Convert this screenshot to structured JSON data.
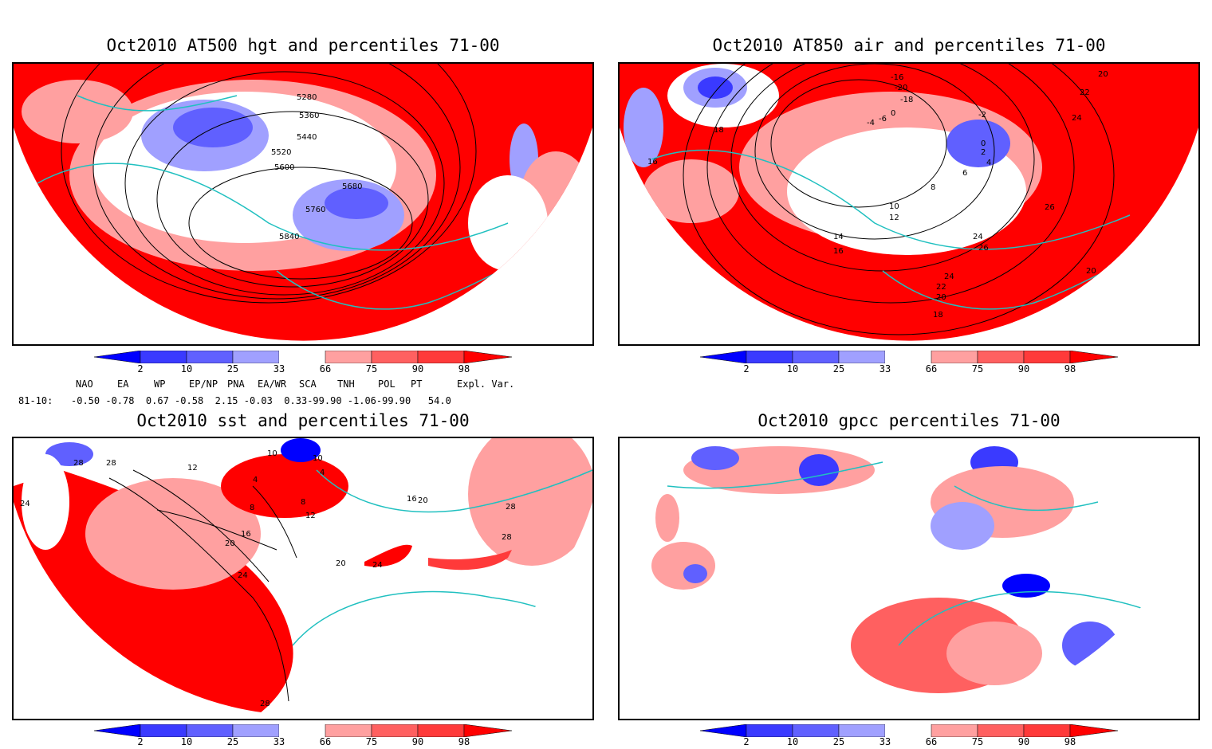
{
  "panels": [
    {
      "title": "Oct2010 AT500 hgt and percentiles 71-00",
      "contour_labels": [
        "5280",
        "5360",
        "5440",
        "5520",
        "5600",
        "5680",
        "5760",
        "5840"
      ]
    },
    {
      "title": "Oct2010 AT850 air and percentiles 71-00",
      "contour_labels": [
        "-16",
        "-20",
        "-18",
        "-4",
        "-6",
        "0",
        "-2",
        "0",
        "2",
        "4",
        "6",
        "8",
        "10",
        "12",
        "14",
        "16",
        "18",
        "16",
        "20",
        "22",
        "24",
        "26",
        "24",
        "26",
        "24",
        "22",
        "20",
        "18",
        "20",
        "22",
        "24",
        "26",
        "20",
        "18"
      ]
    },
    {
      "title": "Oct2010 sst and percentiles 71-00",
      "contour_labels": [
        "28",
        "28",
        "24",
        "12",
        "10",
        "4",
        "4",
        "8",
        "8",
        "12",
        "16",
        "20",
        "24",
        "20",
        "24",
        "16",
        "20",
        "28",
        "28",
        "28",
        "28"
      ]
    },
    {
      "title": "Oct2010 gpcc percentiles 71-00",
      "contour_labels": []
    }
  ],
  "colorbar": {
    "labels": [
      "2",
      "10",
      "25",
      "33",
      "66",
      "75",
      "90",
      "98"
    ],
    "colors": [
      "#0000ff",
      "#3a3aff",
      "#6060ff",
      "#a0a0ff",
      "#ffffff",
      "#ffa0a0",
      "#ff6060",
      "#ff3a3a",
      "#ff0000"
    ]
  },
  "teleconnection_indices": {
    "headers": [
      "NAO",
      "EA",
      "WP",
      "EP/NP",
      "PNA",
      "EA/WR",
      "SCA",
      "TNH",
      "POL",
      "PT",
      "Expl. Var."
    ],
    "row_label": "81-10:",
    "values": "-0.50 -0.78  0.67 -0.58  2.15 -0.03  0.33-99.90 -1.06-99.90   54.0"
  },
  "colors": {
    "ocean_line": "#20c0c0",
    "contour": "#000000",
    "frame": "#000000"
  }
}
